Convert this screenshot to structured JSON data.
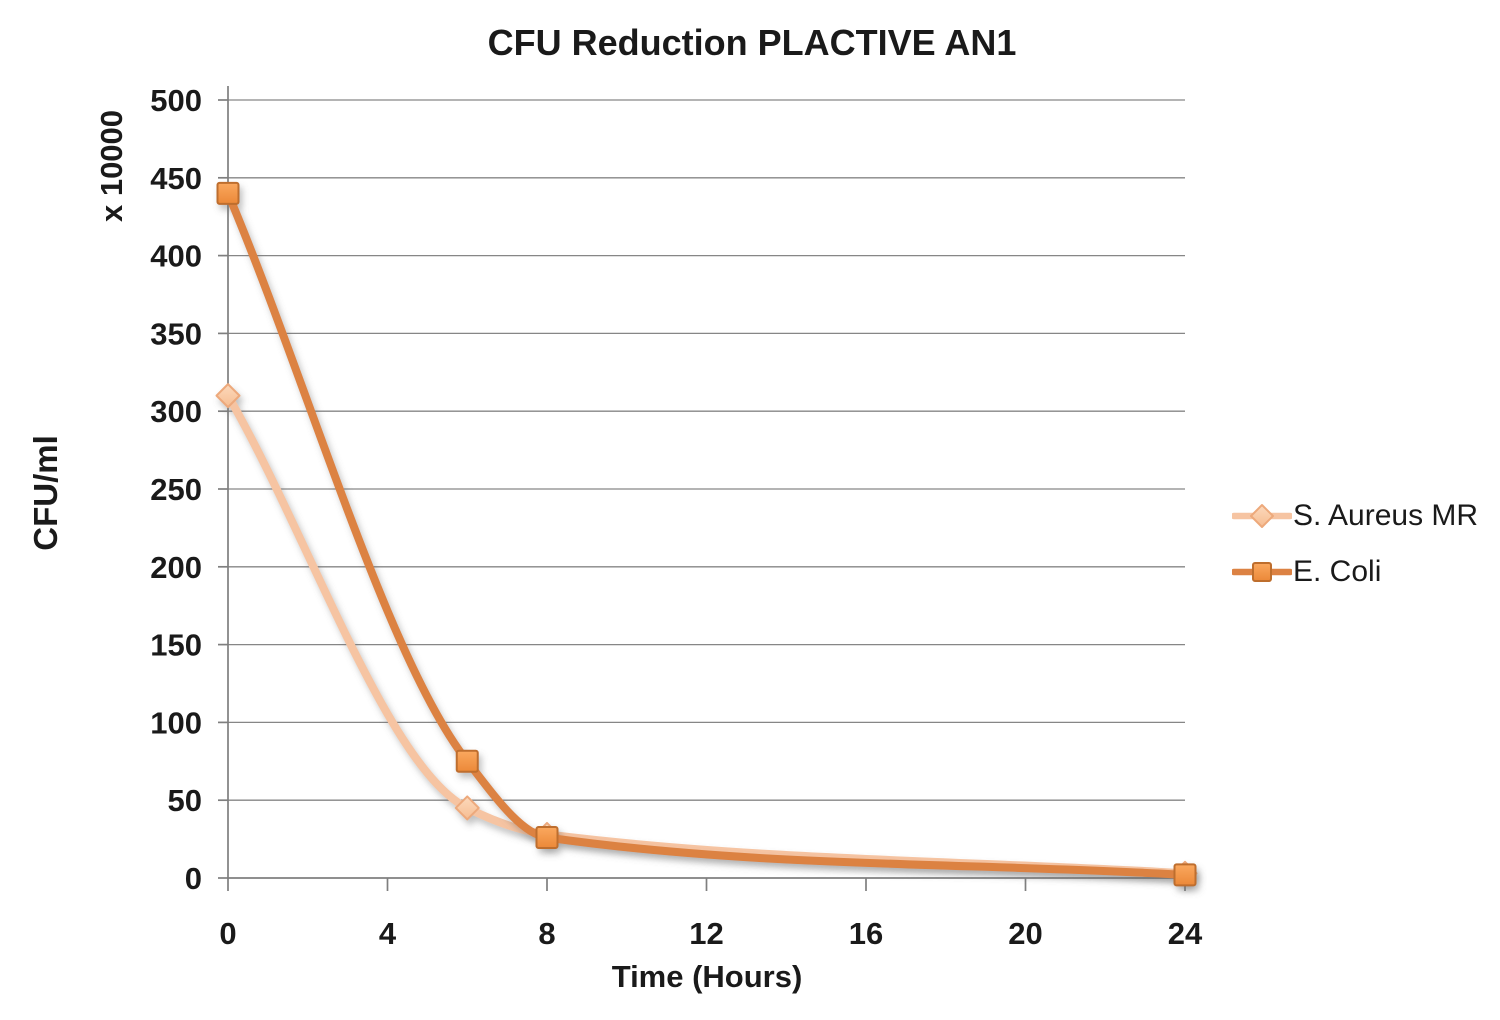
{
  "chart_data": {
    "type": "line",
    "title": "CFU Reduction PLACTIVE AN1",
    "xlabel": "Time (Hours)",
    "ylabel": "CFU/ml",
    "y_unit_note": "x 10000",
    "x": [
      0,
      6,
      8,
      24
    ],
    "series": [
      {
        "name": "S. Aureus MR",
        "values": [
          310,
          45,
          28,
          3
        ],
        "marker": "diamond",
        "line_color": "#F6C4A2",
        "marker_fill_top": "#FCD9BC",
        "marker_fill_bottom": "#F6BD92",
        "marker_stroke": "#EDA97B"
      },
      {
        "name": "E. Coli",
        "values": [
          440,
          75,
          26,
          2
        ],
        "marker": "square",
        "line_color": "#DC8243",
        "marker_fill_top": "#FAA85F",
        "marker_fill_bottom": "#EB8838",
        "marker_stroke": "#BE6E2D"
      }
    ],
    "xlim": [
      0,
      24
    ],
    "ylim": [
      0,
      500
    ],
    "xticks": [
      0,
      4,
      8,
      12,
      16,
      20,
      24
    ],
    "yticks": [
      0,
      50,
      100,
      150,
      200,
      250,
      300,
      350,
      400,
      450,
      500
    ],
    "grid": true,
    "legend_position": "right",
    "smoothed_lines": true,
    "grid_color": "#868686",
    "axis_color": "#7F7F7F",
    "text_color": "#1A1A1A",
    "background": "#FFFFFF"
  }
}
